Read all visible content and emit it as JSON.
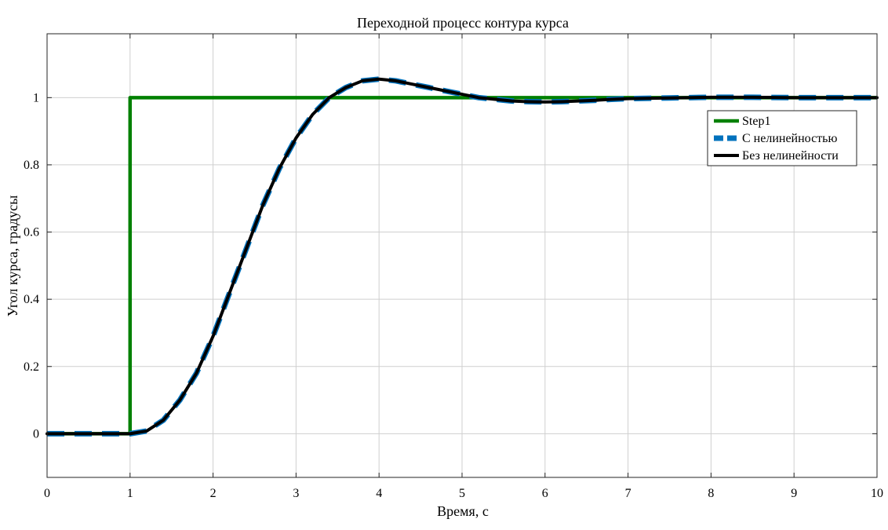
{
  "chart_data": {
    "type": "line",
    "title": "Переходной процесс контура курса",
    "xlabel": "Время, с",
    "ylabel": "Угол курса, градусы",
    "xlim": [
      0,
      10
    ],
    "ylim": [
      -0.13,
      1.19
    ],
    "xticks": [
      0,
      1,
      2,
      3,
      4,
      5,
      6,
      7,
      8,
      9,
      10
    ],
    "yticks": [
      0,
      0.2,
      0.4,
      0.6,
      0.8,
      1
    ],
    "grid": true,
    "legend_position": "top-right",
    "series": [
      {
        "name": "Step1",
        "color": "#008000",
        "style": "solid",
        "x": [
          0,
          1,
          1,
          10
        ],
        "y": [
          0,
          0,
          1,
          1
        ]
      },
      {
        "name": "С нелинейностью",
        "color": "#0072BD",
        "style": "dashed",
        "x": [
          0,
          1,
          1.2,
          1.4,
          1.6,
          1.8,
          2.0,
          2.2,
          2.4,
          2.6,
          2.8,
          3.0,
          3.2,
          3.4,
          3.6,
          3.8,
          4.0,
          4.2,
          4.4,
          4.6,
          4.8,
          5.0,
          5.2,
          5.4,
          5.6,
          5.8,
          6.0,
          6.2,
          6.4,
          6.6,
          6.8,
          7.0,
          7.5,
          8.0,
          8.5,
          9.0,
          9.5,
          10
        ],
        "y": [
          0,
          0,
          0.008,
          0.04,
          0.1,
          0.18,
          0.29,
          0.42,
          0.55,
          0.68,
          0.79,
          0.88,
          0.95,
          1.0,
          1.03,
          1.05,
          1.055,
          1.05,
          1.04,
          1.03,
          1.02,
          1.01,
          1.0,
          0.995,
          0.99,
          0.988,
          0.987,
          0.988,
          0.99,
          0.992,
          0.995,
          0.997,
          0.999,
          1.001,
          1.001,
          1.0,
          1.0,
          1.0
        ]
      },
      {
        "name": "Без нелинейности",
        "color": "#000000",
        "style": "solid",
        "x": [
          0,
          1,
          1.2,
          1.4,
          1.6,
          1.8,
          2.0,
          2.2,
          2.4,
          2.6,
          2.8,
          3.0,
          3.2,
          3.4,
          3.6,
          3.8,
          4.0,
          4.2,
          4.4,
          4.6,
          4.8,
          5.0,
          5.2,
          5.4,
          5.6,
          5.8,
          6.0,
          6.2,
          6.4,
          6.6,
          6.8,
          7.0,
          7.5,
          8.0,
          8.5,
          9.0,
          9.5,
          10
        ],
        "y": [
          0,
          0,
          0.008,
          0.04,
          0.1,
          0.18,
          0.29,
          0.42,
          0.55,
          0.68,
          0.79,
          0.88,
          0.95,
          1.0,
          1.03,
          1.05,
          1.055,
          1.05,
          1.04,
          1.03,
          1.02,
          1.01,
          1.0,
          0.995,
          0.99,
          0.988,
          0.987,
          0.988,
          0.99,
          0.992,
          0.995,
          0.997,
          0.999,
          1.001,
          1.001,
          1.0,
          1.0,
          1.0
        ]
      }
    ]
  }
}
